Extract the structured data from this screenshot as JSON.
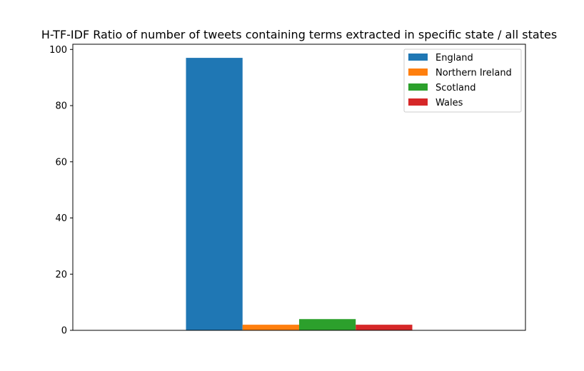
{
  "chart_data": {
    "type": "bar",
    "title": "H-TF-IDF Ratio of number of tweets containing terms extracted in specific state / all states",
    "xlabel": "",
    "ylabel": "",
    "ylim": [
      0,
      100
    ],
    "yticks": [
      0,
      20,
      40,
      60,
      80,
      100
    ],
    "categories": [
      ""
    ],
    "series": [
      {
        "name": "England",
        "values": [
          97
        ],
        "color": "#1f77b4"
      },
      {
        "name": "Northern Ireland",
        "values": [
          2
        ],
        "color": "#ff7f0e"
      },
      {
        "name": "Scotland",
        "values": [
          4
        ],
        "color": "#2ca02c"
      },
      {
        "name": "Wales",
        "values": [
          2
        ],
        "color": "#d62728"
      }
    ],
    "legend": "top-right",
    "grid": false
  }
}
